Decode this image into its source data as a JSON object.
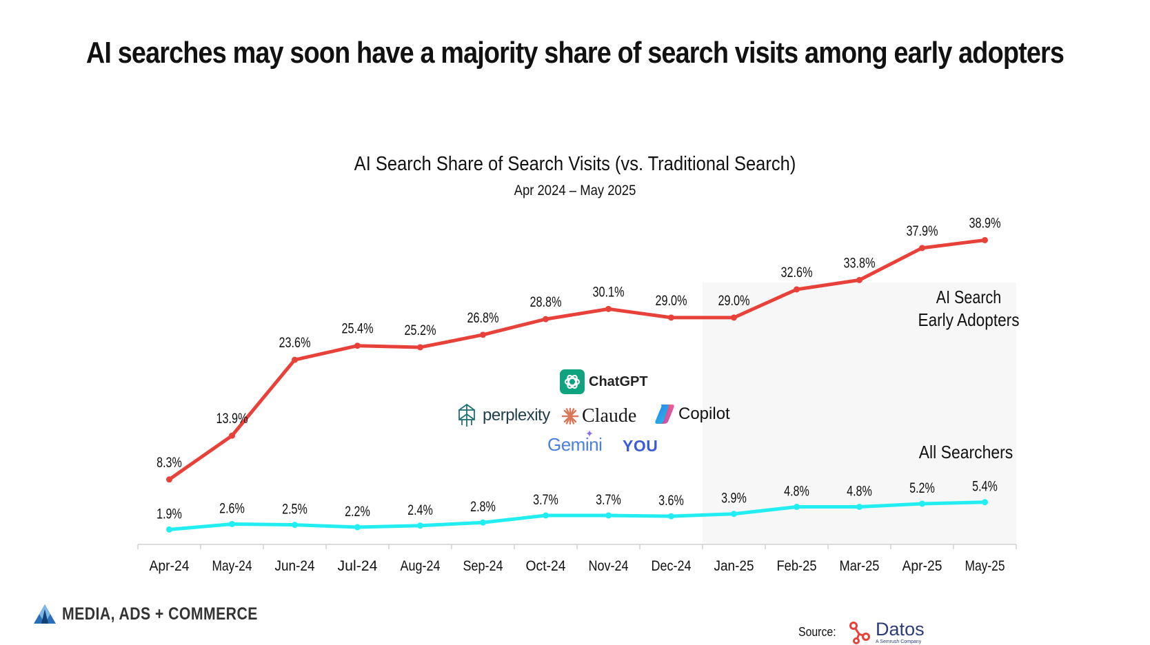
{
  "headline": "AI searches may soon have a majority share of search visits among early adopters",
  "chart_data": {
    "type": "line",
    "title": "AI Search Share of Search Visits (vs. Traditional Search)",
    "subtitle": "Apr 2024 – May 2025",
    "categories": [
      "Apr-24",
      "May-24",
      "Jun-24",
      "Jul-24",
      "Aug-24",
      "Sep-24",
      "Oct-24",
      "Nov-24",
      "Dec-24",
      "Jan-25",
      "Feb-25",
      "Mar-25",
      "Apr-25",
      "May-25"
    ],
    "series": [
      {
        "name": "AI Search\nEarly Adopters",
        "name_lines": [
          "AI Search",
          "Early Adopters"
        ],
        "color": "#e8413a",
        "values": [
          8.3,
          13.9,
          23.6,
          25.4,
          25.2,
          26.8,
          28.8,
          30.1,
          29.0,
          29.0,
          32.6,
          33.8,
          37.9,
          38.9
        ],
        "labels": [
          "8.3%",
          "13.9%",
          "23.6%",
          "25.4%",
          "25.2%",
          "26.8%",
          "28.8%",
          "30.1%",
          "29.0%",
          "29.0%",
          "32.6%",
          "33.8%",
          "37.9%",
          "38.9%"
        ]
      },
      {
        "name": "All Searchers",
        "name_lines": [
          "All Searchers"
        ],
        "color": "#22eef2",
        "values": [
          1.9,
          2.6,
          2.5,
          2.2,
          2.4,
          2.8,
          3.7,
          3.7,
          3.6,
          3.9,
          4.8,
          4.8,
          5.2,
          5.4
        ],
        "labels": [
          "1.9%",
          "2.6%",
          "2.5%",
          "2.2%",
          "2.4%",
          "2.8%",
          "3.7%",
          "3.7%",
          "3.6%",
          "3.9%",
          "4.8%",
          "4.8%",
          "5.2%",
          "5.4%"
        ]
      }
    ],
    "ylim": [
      0,
      45
    ],
    "highlight_region": [
      "Jan-25",
      "May-25"
    ],
    "grid": false,
    "legend": "inline"
  },
  "logos": {
    "chatgpt": "ChatGPT",
    "perplexity": "perplexity",
    "claude": "Claude",
    "copilot": "Copilot",
    "gemini": "Gemini",
    "you": "YOU"
  },
  "footer": {
    "brand": "MEDIA, ADS + COMMERCE",
    "source_label": "Source:",
    "source_name": "Datos",
    "source_tagline": "A Semrush Company"
  },
  "colors": {
    "ai_line": "#e8413a",
    "all_line": "#22eef2",
    "datos": "#2d3b7a",
    "chatgpt_bg": "#10a37f",
    "claude": "#d97757"
  }
}
